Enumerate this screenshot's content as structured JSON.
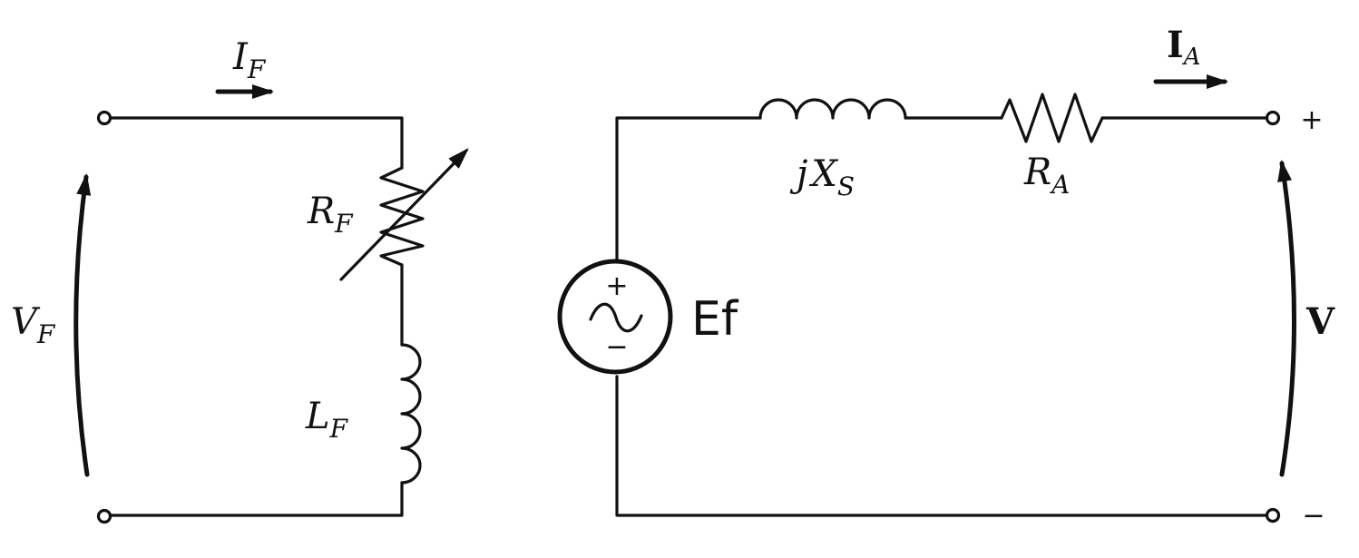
{
  "field_circuit": {
    "current": {
      "main": "I",
      "sub": "F"
    },
    "voltage": {
      "main": "V",
      "sub": "F"
    },
    "resistor": {
      "main": "R",
      "sub": "F"
    },
    "inductor": {
      "main": "L",
      "sub": "F"
    }
  },
  "armature_circuit": {
    "reactance": {
      "prefix": "j",
      "main": "X",
      "sub": "S"
    },
    "resistor": {
      "main": "R",
      "sub": "A"
    },
    "current": {
      "main": "I",
      "sub": "A"
    },
    "terminal_voltage": "V",
    "plus_sign": "+",
    "minus_sign": "−",
    "source": {
      "label": "Ef",
      "plus": "+",
      "minus": "−"
    }
  }
}
